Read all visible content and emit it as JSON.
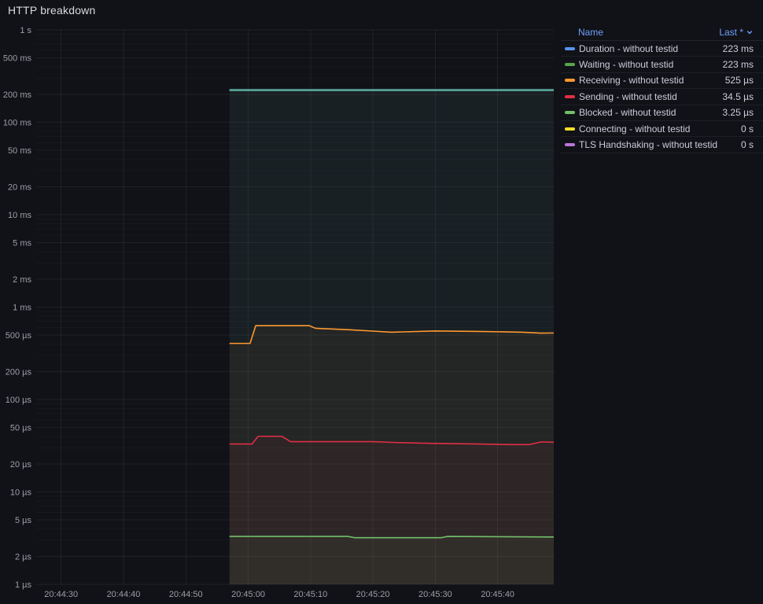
{
  "panel": {
    "title": "HTTP breakdown"
  },
  "legend": {
    "columns": {
      "name": "Name",
      "last": "Last *"
    },
    "sort_icon": "caret-down-icon",
    "rows": [
      {
        "name": "Duration - without testid",
        "last": "223 ms",
        "color": "#5794F2"
      },
      {
        "name": "Waiting - without testid",
        "last": "223 ms",
        "color": "#56A64B"
      },
      {
        "name": "Receiving - without testid",
        "last": "525 µs",
        "color": "#FF9830"
      },
      {
        "name": "Sending - without testid",
        "last": "34.5 µs",
        "color": "#E02F44"
      },
      {
        "name": "Blocked - without testid",
        "last": "3.25 µs",
        "color": "#73BF69"
      },
      {
        "name": "Connecting - without testid",
        "last": "0 s",
        "color": "#FADE2A"
      },
      {
        "name": "TLS Handshaking - without testid",
        "last": "0 s",
        "color": "#B877D9"
      }
    ]
  },
  "chart_data": {
    "type": "line",
    "title": "HTTP breakdown",
    "y_scale": "log",
    "y_unit": "µs",
    "y_range_us": [
      1,
      1000000
    ],
    "grid": true,
    "legend_position": "right-top",
    "x_domain_seconds": [
      26,
      109
    ],
    "x_ticks": [
      {
        "t": 30,
        "label": "20:44:30"
      },
      {
        "t": 40,
        "label": "20:44:40"
      },
      {
        "t": 50,
        "label": "20:44:50"
      },
      {
        "t": 60,
        "label": "20:45:00"
      },
      {
        "t": 70,
        "label": "20:45:10"
      },
      {
        "t": 80,
        "label": "20:45:20"
      },
      {
        "t": 90,
        "label": "20:45:30"
      },
      {
        "t": 100,
        "label": "20:45:40"
      }
    ],
    "y_ticks": [
      {
        "v": 1000000,
        "label": "1 s"
      },
      {
        "v": 500000,
        "label": "500 ms"
      },
      {
        "v": 200000,
        "label": "200 ms"
      },
      {
        "v": 100000,
        "label": "100 ms"
      },
      {
        "v": 50000,
        "label": "50 ms"
      },
      {
        "v": 20000,
        "label": "20 ms"
      },
      {
        "v": 10000,
        "label": "10 ms"
      },
      {
        "v": 5000,
        "label": "5 ms"
      },
      {
        "v": 2000,
        "label": "2 ms"
      },
      {
        "v": 1000,
        "label": "1 ms"
      },
      {
        "v": 500,
        "label": "500 µs"
      },
      {
        "v": 200,
        "label": "200 µs"
      },
      {
        "v": 100,
        "label": "100 µs"
      },
      {
        "v": 50,
        "label": "50 µs"
      },
      {
        "v": 20,
        "label": "20 µs"
      },
      {
        "v": 10,
        "label": "10 µs"
      },
      {
        "v": 5,
        "label": "5 µs"
      },
      {
        "v": 2,
        "label": "2 µs"
      },
      {
        "v": 1,
        "label": "1 µs"
      }
    ],
    "series": [
      {
        "name": "Duration - without testid",
        "color": "#5794F2",
        "line_width": 2.8,
        "points": [
          [
            57,
            223000
          ],
          [
            109,
            223000
          ]
        ]
      },
      {
        "name": "Waiting - without testid",
        "color": "#56A64B",
        "line_width": 1.6,
        "points": [
          [
            57,
            223000
          ],
          [
            109,
            223000
          ]
        ]
      },
      {
        "name": "Receiving - without testid",
        "color": "#FF9830",
        "line_width": 1.6,
        "points": [
          [
            57,
            405
          ],
          [
            60.3,
            405
          ],
          [
            61.2,
            630
          ],
          [
            69.8,
            630
          ],
          [
            70.8,
            590
          ],
          [
            76,
            570
          ],
          [
            80,
            550
          ],
          [
            83,
            535
          ],
          [
            90,
            552
          ],
          [
            97,
            545
          ],
          [
            101,
            540
          ],
          [
            104,
            535
          ],
          [
            107,
            523
          ],
          [
            109,
            525
          ]
        ]
      },
      {
        "name": "Sending - without testid",
        "color": "#E02F44",
        "line_width": 1.6,
        "points": [
          [
            57,
            33
          ],
          [
            60.6,
            33
          ],
          [
            61.6,
            40
          ],
          [
            65.4,
            40
          ],
          [
            66.8,
            35
          ],
          [
            80,
            35
          ],
          [
            84,
            34.2
          ],
          [
            90,
            33.5
          ],
          [
            97,
            33
          ],
          [
            102,
            32.5
          ],
          [
            105,
            32.5
          ],
          [
            107,
            34.8
          ],
          [
            109,
            34.5
          ]
        ]
      },
      {
        "name": "Blocked - without testid",
        "color": "#73BF69",
        "line_width": 1.6,
        "points": [
          [
            57,
            3.3
          ],
          [
            76,
            3.3
          ],
          [
            77,
            3.2
          ],
          [
            91,
            3.2
          ],
          [
            92,
            3.3
          ],
          [
            109,
            3.25
          ]
        ]
      },
      {
        "name": "Connecting - without testid",
        "color": "#FADE2A",
        "line_width": 1.6,
        "points": []
      },
      {
        "name": "TLS Handshaking - without testid",
        "color": "#B877D9",
        "line_width": 1.6,
        "points": []
      }
    ]
  },
  "theme": {
    "background": "#111217",
    "title_color": "#d9dadf",
    "axis_label_color": "#9d9ea6",
    "legend_link_color": "#6e9fff",
    "grid_major": "rgba(204,204,220,0.08)",
    "grid_minor": "rgba(204,204,220,0.035)"
  }
}
